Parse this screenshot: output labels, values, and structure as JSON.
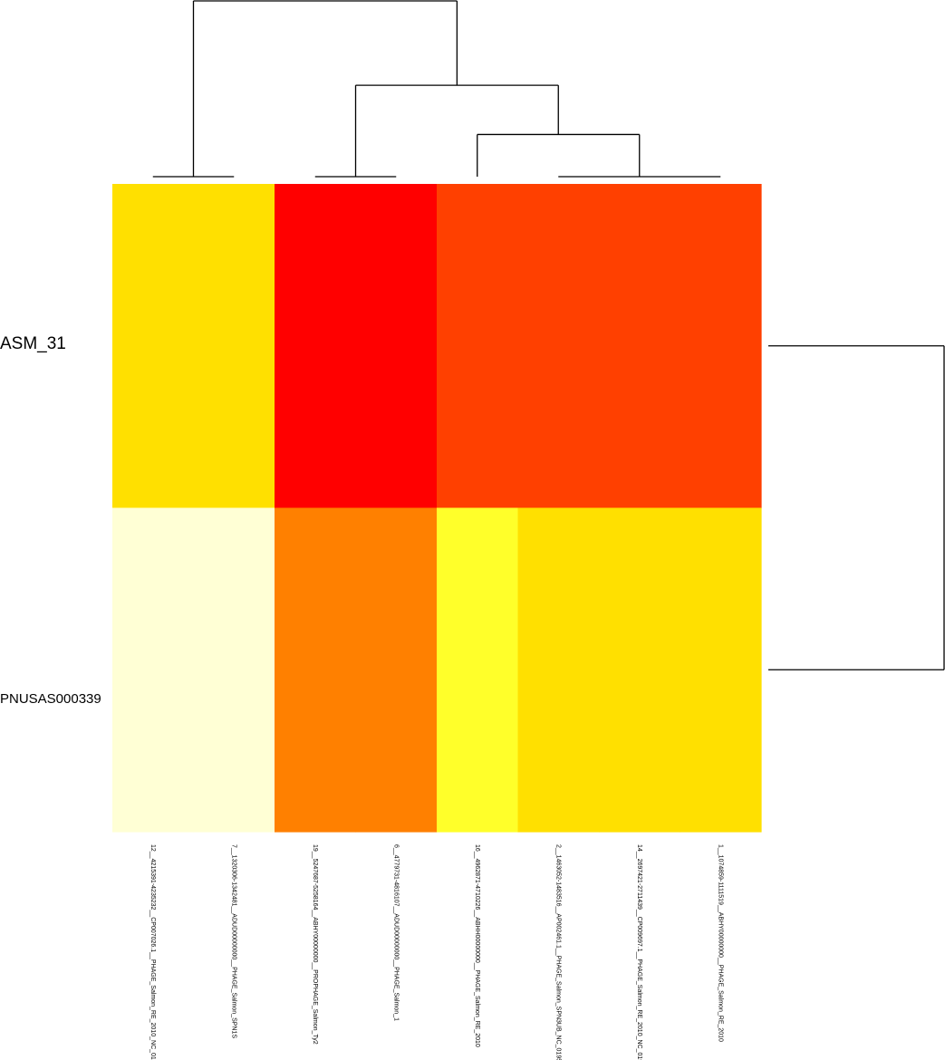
{
  "chart_data": {
    "type": "heatmap",
    "title": "",
    "rows": [
      "ASM_31",
      "PNUSAS000339"
    ],
    "columns": [
      "12__4215391-4235232__CP007026.1__PHAGE_Salmon_RE_2010_NC_019488(2)",
      "7__1320306-1342481__ADUD00000000__PHAGE_Salmon_SPN1S",
      "19__5247687-5258164__ABHY00000000__PROPHAGE_Salmon_Ty2",
      "6__4779731-4816107__ADUD00000000__PHAGE_Salmon_1",
      "16__4962871-4710226__ABHH00000000__PHAGE_Salmon_RE_2010",
      "2__1463052-1483516__AP002461.1__PHAGE_Salmon_SPN3UB_NC_019545(6)",
      "14__2697421-2711439__CP009697.1__PHAGE_Salmon_RE_2010_NC_019488(6)",
      "1__1074859-1111519__ABHY00000000__PHAGE_Salmon_RE_2010"
    ],
    "colors": [
      [
        "#FFE000",
        "#FFE000",
        "#FF0000",
        "#FF0000",
        "#FF4000",
        "#FF4000",
        "#FF4000",
        "#FF4000"
      ],
      [
        "#FFFFD5",
        "#FFFFD5",
        "#FF8000",
        "#FF8000",
        "#FFFF2A",
        "#FFE000",
        "#FFE000",
        "#FFE000"
      ]
    ],
    "column_dendrogram": [
      {
        "left": [
          0.5,
          0
        ],
        "right": [
          2.5,
          0
        ],
        "height": 1.0
      },
      {
        "left": [
          1.5,
          0
        ],
        "right": [
          4.0,
          0
        ],
        "height": 0.52
      },
      {
        "left": [
          2.5,
          0
        ],
        "right": [
          5.5,
          0
        ],
        "height": 0.24
      },
      {
        "left": [
          5.5,
          0
        ],
        "right": [
          7.5,
          0
        ],
        "height": 0.0
      }
    ],
    "row_dendrogram": [
      {
        "left": [
          0.5,
          0
        ],
        "right": [
          1.5,
          0
        ],
        "height": 1.0
      }
    ]
  }
}
